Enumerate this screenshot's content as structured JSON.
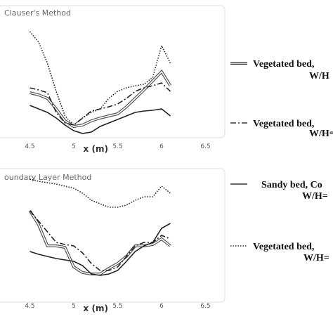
{
  "chart_data": [
    {
      "type": "line",
      "title": "Clauser's Method",
      "xlabel": "x (m)",
      "xlim": [
        4.16,
        6.72
      ],
      "xticks": [
        4.5,
        5,
        5.5,
        6,
        6.5
      ],
      "ylim": [
        0,
        185
      ],
      "x": [
        4.5,
        4.6,
        4.7,
        4.8,
        4.9,
        5.0,
        5.1,
        5.2,
        5.3,
        5.4,
        5.5,
        5.6,
        5.7,
        5.8,
        5.9,
        6.0,
        6.1
      ],
      "series": [
        {
          "style": "double",
          "color": "#555555",
          "values": [
            63,
            60,
            55,
            40,
            23,
            15,
            17,
            23,
            27,
            30,
            33,
            43,
            55,
            67,
            80,
            93,
            73
          ]
        },
        {
          "style": "dashdot",
          "color": "#222222",
          "values": [
            70,
            67,
            63,
            35,
            20,
            17,
            27,
            37,
            40,
            43,
            47,
            55,
            65,
            70,
            73,
            77,
            65
          ]
        },
        {
          "style": "solid",
          "color": "#222222",
          "values": [
            45,
            40,
            35,
            27,
            17,
            9,
            5,
            7,
            15,
            20,
            25,
            30,
            35,
            37,
            38,
            40,
            30
          ]
        },
        {
          "style": "dotted",
          "color": "#222222",
          "values": [
            150,
            135,
            105,
            65,
            30,
            17,
            27,
            35,
            40,
            55,
            65,
            70,
            73,
            75,
            85,
            130,
            105
          ]
        }
      ]
    },
    {
      "type": "line",
      "title": "oundary Layer Method",
      "xlabel": "x (m)",
      "xlim": [
        4.16,
        6.72
      ],
      "xticks": [
        4.5,
        5,
        5.5,
        6,
        6.5
      ],
      "ylim": [
        0,
        182
      ],
      "x": [
        4.5,
        4.6,
        4.7,
        4.8,
        4.9,
        5.0,
        5.1,
        5.2,
        5.3,
        5.4,
        5.5,
        5.6,
        5.7,
        5.8,
        5.9,
        6.0,
        6.1
      ],
      "series": [
        {
          "style": "double",
          "color": "#555555",
          "values": [
            125,
            105,
            75,
            75,
            73,
            45,
            37,
            35,
            35,
            43,
            50,
            60,
            75,
            75,
            77,
            85,
            75
          ]
        },
        {
          "style": "dashdot",
          "color": "#222222",
          "values": [
            125,
            110,
            95,
            80,
            77,
            75,
            65,
            50,
            40,
            40,
            45,
            60,
            75,
            80,
            80,
            90,
            85
          ]
        },
        {
          "style": "solid",
          "color": "#222222",
          "values": [
            67,
            63,
            60,
            57,
            55,
            53,
            47,
            35,
            33,
            35,
            40,
            53,
            67,
            75,
            80,
            100,
            107
          ]
        },
        {
          "style": "dotted",
          "color": "#222222",
          "values": [
            170,
            167,
            165,
            163,
            160,
            157,
            150,
            140,
            135,
            130,
            130,
            133,
            140,
            145,
            145,
            160,
            150
          ]
        }
      ]
    }
  ],
  "legend": [
    {
      "style": "double",
      "lines": [
        "Vegetated bed,",
        "W/H"
      ]
    },
    {
      "style": "dashdot",
      "lines": [
        "Vegetated bed,",
        "W/H="
      ]
    },
    {
      "style": "solid",
      "lines": [
        "Sandy bed, Co",
        "W/H="
      ]
    },
    {
      "style": "dotted",
      "lines": [
        "Vegetated bed,",
        "W/H="
      ]
    }
  ]
}
